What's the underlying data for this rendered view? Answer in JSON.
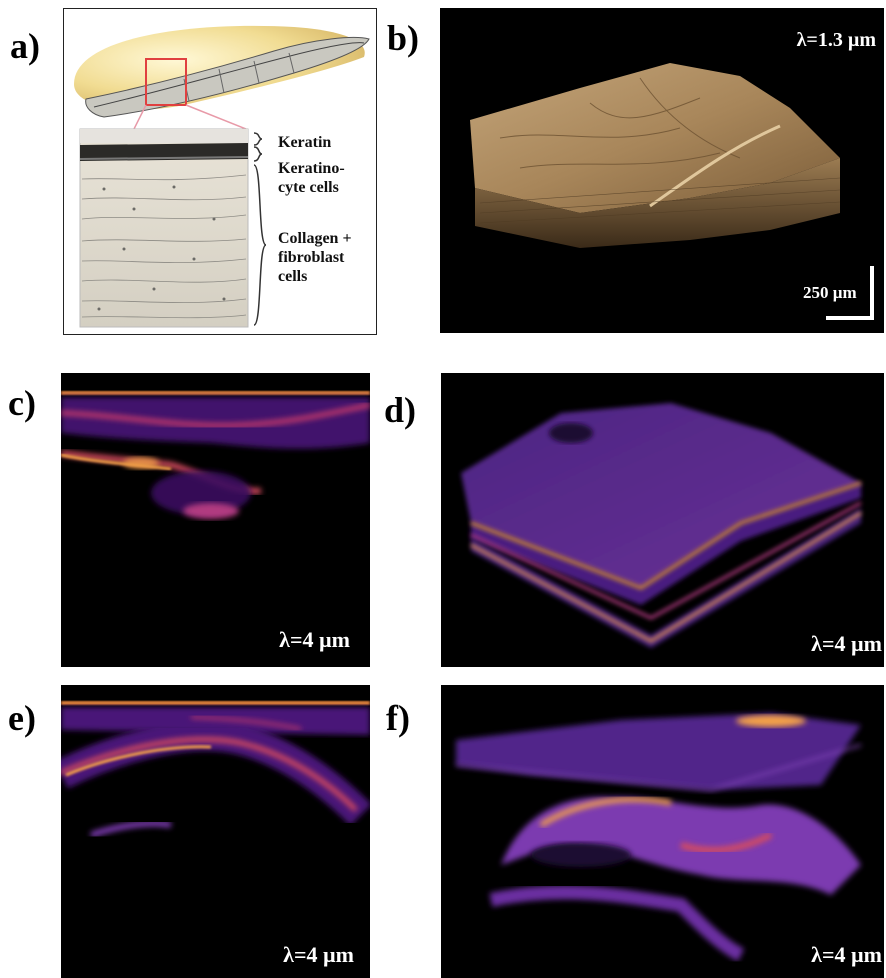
{
  "panels": {
    "a": {
      "label": "a)",
      "annotations": {
        "keratin": "Keratin",
        "keratinocyte": "Keratino-\ncyte cells",
        "collagen": "Collagen +\nfibroblast\ncells"
      }
    },
    "b": {
      "label": "b)",
      "wavelength": "λ=1.3 µm",
      "scale_bar": "250 µm"
    },
    "c": {
      "label": "c)",
      "wavelength": "λ=4 µm"
    },
    "d": {
      "label": "d)",
      "wavelength": "λ=4 µm"
    },
    "e": {
      "label": "e)",
      "wavelength": "λ=4 µm"
    },
    "f": {
      "label": "f)",
      "wavelength": "λ=4 µm"
    }
  },
  "colors": {
    "oct_visible": "#b89060",
    "oct_mir_dim": "#5a1f8f",
    "oct_mir_bright": "#f3a048",
    "background_dark": "#000000"
  }
}
